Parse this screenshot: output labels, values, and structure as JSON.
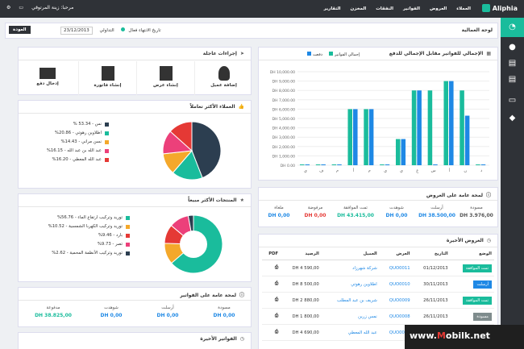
{
  "app": {
    "logo": "Aliphia",
    "back": "العودة",
    "page_title": "لوحة العمالية"
  },
  "topnav": [
    "العملاء",
    "العروض",
    "الفواتير",
    "النفقات",
    "المخزن",
    "التقارير"
  ],
  "user": "مرحبا: زينة المرتوقي",
  "subbar": {
    "date_from": "23/12/2013",
    "label_to": "تاريخ الانتهاء",
    "status": "فعال",
    "label2": "التداولي"
  },
  "quick": {
    "title": "إجراءات عاجلة",
    "items": [
      "إضافة عميل",
      "إنشاء عرض",
      "إنشاء فاتورة",
      "إدخال دفع"
    ]
  },
  "clients_panel": {
    "title": "العملاء الأكثر تعاملاً",
    "legend": [
      "نس - 53.34 %",
      "اطلاوين رهوتي - 20.86%",
      "نسن مراني - 14.43%",
      "عبد الله بن عبد الله - 16.15%",
      "عبد الله المعطي - 16.20%"
    ]
  },
  "products_panel": {
    "title": "المنتجات الأكثر مبيعاً",
    "legend": [
      "توريد وتركيب ارتفاع الماء - 56.76%",
      "توريد وتركيب الكهربا الشمسية - 10.52%",
      "بارد - 9.46%",
      "تصر - 9.73%",
      "توريد وتركيب الأنظمة المحمية - 2.62%"
    ]
  },
  "invoice_overview": {
    "title": "لمحة عامة على الفواتير",
    "stats": [
      {
        "k": "مسودة",
        "v": "DH 0,00"
      },
      {
        "k": "أرسلت",
        "v": "DH 0,00"
      },
      {
        "k": "شوهدت",
        "v": "DH 0,00"
      },
      {
        "k": "مدفوعة",
        "v": "DH 38.825,00"
      }
    ]
  },
  "last_invoices": {
    "title": "الفواتير الأخيرة"
  },
  "chart_panel": {
    "title": "الإجمالي للفواتير مقابل الإجمالي للدفع",
    "legend": [
      "إجمالي الفواتير",
      "دفعت"
    ]
  },
  "chart_data": {
    "type": "bar",
    "categories": [
      "ي",
      "ف",
      "م",
      "أ",
      "م",
      "ي",
      "ي",
      "غ",
      "س",
      "أ",
      "ن",
      "د"
    ],
    "series": [
      {
        "name": "إجمالي الفواتير",
        "values": [
          0,
          0,
          0,
          6000,
          6000,
          0,
          2800,
          8000,
          8000,
          9000,
          8000,
          0
        ]
      },
      {
        "name": "دفعت",
        "values": [
          0,
          0,
          0,
          6000,
          6000,
          0,
          2800,
          8000,
          0,
          9000,
          5300,
          0
        ]
      }
    ],
    "ylabels": [
      "DH 10,000.00",
      "DH 9,000.00",
      "DH 8,000.00",
      "DH 7,000.00",
      "DH 6,000.00",
      "DH 5,000.00",
      "DH 4,000.00",
      "DH 3,000.00",
      "DH 2,000.00",
      "DH 1,000.00",
      "DH 0.00"
    ],
    "ylim": [
      0,
      10000
    ]
  },
  "quotes_overview": {
    "title": "لمحة عامة على العروض",
    "stats": [
      {
        "k": "مسودة",
        "v": "DH 3.976,00"
      },
      {
        "k": "أرسلت",
        "v": "DH 38.500,00"
      },
      {
        "k": "شوهدت",
        "v": "DH 0,00"
      },
      {
        "k": "تمت الموافقة",
        "v": "DH 43.415,00"
      },
      {
        "k": "مرفوضة",
        "v": "DH 0,00"
      },
      {
        "k": "ملغاة",
        "v": "DH 0,00"
      }
    ]
  },
  "recent_quotes": {
    "title": "العروض الأخيرة",
    "headers": [
      "الوضع",
      "التاريخ",
      "العرض",
      "العميل",
      "الرصيد",
      "PDF"
    ],
    "rows": [
      [
        "تمت الموافقة",
        "01/12/2013",
        "QUO0011",
        "شركة شهرزاد",
        "DH 4 590,00"
      ],
      [
        "أرسلت",
        "30/11/2013",
        "QUO0010",
        "اطلاوين رهوتي",
        "DH 8 500,00"
      ],
      [
        "تمت الموافقة",
        "26/11/2013",
        "QUO0009",
        "شريف بن عبد المطلب",
        "DH 2 880,00"
      ],
      [
        "مسودة",
        "26/11/2013",
        "QUO0008",
        "نمس زرين",
        "DH 1 800,00"
      ],
      [
        "",
        "26/11/2013",
        "QUO0007",
        "عبد الله المعطي",
        "DH 4 690,00"
      ]
    ]
  },
  "colors": {
    "accent": "#1abc9c",
    "blue": "#1e88e5",
    "dark": "#2f3237",
    "pie": [
      "#2c3e50",
      "#1abc9c",
      "#f4a82b",
      "#ec407a",
      "#e53935"
    ],
    "donut": [
      "#1abc9c",
      "#f4a82b",
      "#e53935",
      "#ec407a",
      "#2c3e50"
    ]
  },
  "watermark": {
    "a": "www.",
    "b": "M",
    "c": "obilk.net"
  }
}
